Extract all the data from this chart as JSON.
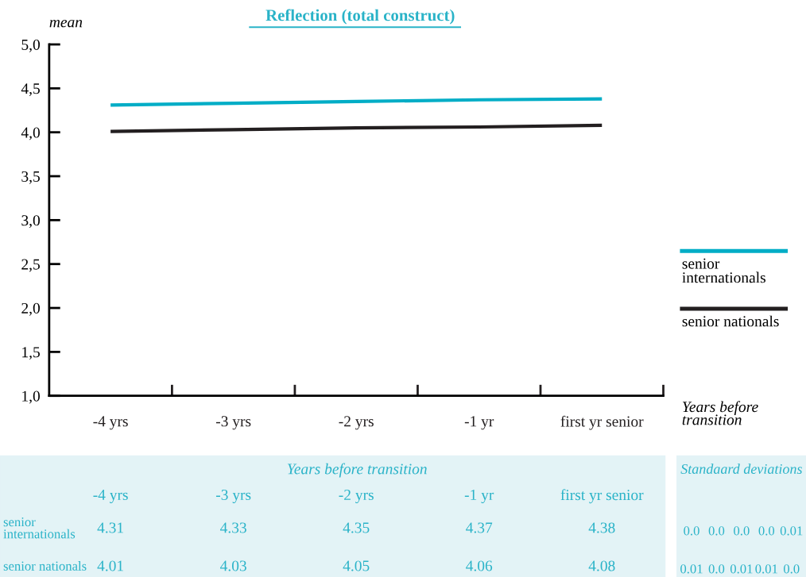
{
  "chart_data": {
    "type": "line",
    "title": "Reflection (total construct)",
    "ylabel": "mean",
    "xlabel": "Years before transition",
    "categories": [
      "-4 yrs",
      "-3 yrs",
      "-2 yrs",
      "-1 yr",
      "first yr senior"
    ],
    "series": [
      {
        "name": "senior internationals",
        "color": "#00adc6",
        "values": [
          4.31,
          4.33,
          4.35,
          4.37,
          4.38
        ],
        "value_labels": [
          "4.31",
          "4.33",
          "4.35",
          "4.37",
          "4.38"
        ]
      },
      {
        "name": "senior nationals",
        "color": "#231f20",
        "values": [
          4.01,
          4.03,
          4.05,
          4.06,
          4.08
        ],
        "value_labels": [
          "4.01",
          "4.03",
          "4.05",
          "4.06",
          "4.08"
        ]
      }
    ],
    "ylim": [
      1,
      5
    ],
    "yticks": [
      {
        "value": 1,
        "label": "1,0"
      },
      {
        "value": 1.5,
        "label": "1,5"
      },
      {
        "value": 2,
        "label": "2,0"
      },
      {
        "value": 2.5,
        "label": "2,5"
      },
      {
        "value": 3,
        "label": "3,0"
      },
      {
        "value": 3.5,
        "label": "3,5"
      },
      {
        "value": 4,
        "label": "4,0"
      },
      {
        "value": 4.5,
        "label": "4,5"
      },
      {
        "value": 5,
        "label": "5,0"
      }
    ],
    "legend": "right",
    "grid": false,
    "annotations": [
      "Standaard deviations",
      "0.0",
      "0.0",
      "0.0",
      "0.0",
      "0.01",
      "0.01",
      "0.0",
      "0.01",
      "0.01",
      "0.0"
    ]
  }
}
